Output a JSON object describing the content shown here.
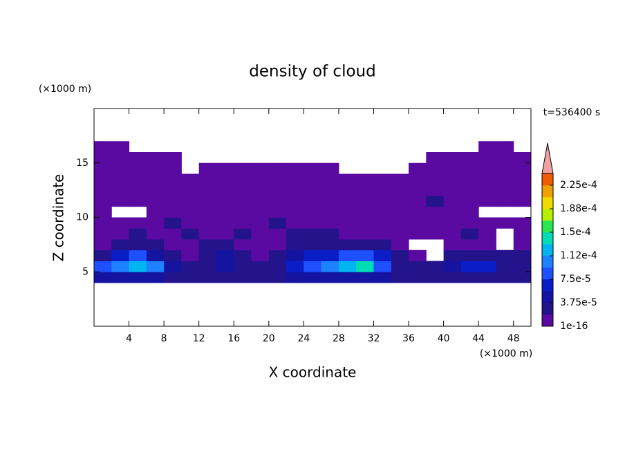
{
  "chart_data": {
    "type": "contour",
    "title": "density of cloud",
    "x_label": "X coordinate",
    "y_label": "Z coordinate",
    "x_unit": "(×1000 m)",
    "y_unit": "(×1000 m)",
    "time_label": "t=536400 s",
    "xlim": [
      0,
      50
    ],
    "ylim": [
      0,
      20
    ],
    "xticks": [
      4,
      8,
      12,
      16,
      20,
      24,
      28,
      32,
      36,
      40,
      44,
      48
    ],
    "yticks": [
      5,
      10,
      15
    ],
    "x_centers": [
      1,
      3,
      5,
      7,
      9,
      11,
      13,
      15,
      17,
      19,
      21,
      23,
      25,
      27,
      29,
      31,
      33,
      35,
      37,
      39,
      41,
      43,
      45,
      47,
      49
    ],
    "z_centers": [
      4.5,
      5.5,
      6.5,
      7.5,
      8.5,
      9.5,
      10.5,
      11.5,
      12.5,
      13.5,
      14.5,
      15.5,
      16.5
    ],
    "z_values": [
      [
        4e-05,
        4e-05,
        4e-05,
        4e-05,
        2e-05,
        2e-05,
        2e-05,
        2e-05,
        2e-05,
        2e-05,
        2e-05,
        4e-05,
        4e-05,
        4e-05,
        4e-05,
        4e-05,
        4e-05,
        2e-05,
        2e-05,
        2e-05,
        2e-05,
        3e-05,
        3e-05,
        2e-05,
        2e-05
      ],
      [
        8e-05,
        0.00011,
        0.00013,
        0.0001,
        4e-05,
        2e-05,
        3e-05,
        4e-05,
        3e-05,
        2e-05,
        3e-05,
        6e-05,
        9e-05,
        0.00011,
        0.00012,
        0.00014,
        9e-05,
        3e-05,
        2e-05,
        3e-05,
        4e-05,
        7e-05,
        6e-05,
        3e-05,
        3e-05
      ],
      [
        3e-05,
        6e-05,
        8e-05,
        5e-05,
        2e-05,
        1e-05,
        3e-05,
        4e-05,
        2e-05,
        1e-05,
        2e-05,
        4e-05,
        6e-05,
        7e-05,
        8e-05,
        9e-05,
        6e-05,
        2e-05,
        1e-05,
        0,
        2e-05,
        3e-05,
        2e-05,
        2e-05,
        2e-05
      ],
      [
        1e-05,
        2e-05,
        3e-05,
        2e-05,
        1e-05,
        1e-05,
        2e-05,
        2e-05,
        1e-05,
        1e-05,
        1e-05,
        2e-05,
        3e-05,
        3e-05,
        3e-05,
        2e-05,
        2e-05,
        1e-05,
        0,
        0,
        1e-05,
        1e-05,
        1e-05,
        0,
        1e-05
      ],
      [
        1e-05,
        1e-05,
        2e-05,
        1e-05,
        1e-05,
        2e-05,
        1e-05,
        1e-05,
        2e-05,
        1e-05,
        1e-05,
        2e-05,
        2e-05,
        2e-05,
        1e-05,
        1e-05,
        1e-05,
        1e-05,
        1e-05,
        1e-05,
        1e-05,
        2e-05,
        1e-05,
        0,
        1e-05
      ],
      [
        1e-05,
        1e-05,
        1e-05,
        1e-05,
        2e-05,
        1e-05,
        1e-05,
        1e-05,
        1e-05,
        1e-05,
        2e-05,
        1e-05,
        1e-05,
        1e-05,
        1e-05,
        1e-05,
        1e-05,
        1e-05,
        1e-05,
        1e-05,
        1e-05,
        1e-05,
        1e-05,
        1e-05,
        1e-05
      ],
      [
        1e-05,
        0,
        0,
        1e-05,
        1e-05,
        1e-05,
        1e-05,
        1e-05,
        1e-05,
        1e-05,
        1e-05,
        1e-05,
        1e-05,
        1e-05,
        1e-05,
        1e-05,
        1e-05,
        1e-05,
        1e-05,
        1e-05,
        1e-05,
        1e-05,
        0,
        0,
        0
      ],
      [
        5e-06,
        5e-06,
        5e-06,
        5e-06,
        5e-06,
        5e-06,
        5e-06,
        5e-06,
        5e-06,
        5e-06,
        5e-06,
        5e-06,
        5e-06,
        5e-06,
        5e-06,
        5e-06,
        5e-06,
        5e-06,
        5e-06,
        2e-05,
        5e-06,
        5e-06,
        5e-06,
        5e-06,
        5e-06
      ],
      [
        5e-06,
        5e-06,
        5e-06,
        5e-06,
        5e-06,
        5e-06,
        5e-06,
        5e-06,
        5e-06,
        5e-06,
        5e-06,
        5e-06,
        5e-06,
        5e-06,
        5e-06,
        5e-06,
        5e-06,
        5e-06,
        5e-06,
        5e-06,
        5e-06,
        5e-06,
        5e-06,
        5e-06,
        5e-06
      ],
      [
        5e-06,
        5e-06,
        5e-06,
        5e-06,
        5e-06,
        5e-06,
        5e-06,
        5e-06,
        5e-06,
        5e-06,
        5e-06,
        5e-06,
        5e-06,
        5e-06,
        5e-06,
        5e-06,
        5e-06,
        5e-06,
        5e-06,
        5e-06,
        5e-06,
        5e-06,
        5e-06,
        5e-06,
        5e-06
      ],
      [
        5e-06,
        5e-06,
        5e-06,
        5e-06,
        5e-06,
        0,
        5e-06,
        5e-06,
        5e-06,
        5e-06,
        5e-06,
        5e-06,
        5e-06,
        5e-06,
        0,
        0,
        0,
        0,
        5e-06,
        5e-06,
        5e-06,
        5e-06,
        5e-06,
        5e-06,
        5e-06
      ],
      [
        5e-06,
        5e-06,
        5e-06,
        5e-06,
        5e-06,
        0,
        0,
        0,
        0,
        0,
        0,
        0,
        0,
        0,
        0,
        0,
        0,
        0,
        0,
        5e-06,
        5e-06,
        5e-06,
        5e-06,
        5e-06,
        5e-06
      ],
      [
        5e-06,
        5e-06,
        0,
        0,
        0,
        0,
        0,
        0,
        0,
        0,
        0,
        0,
        0,
        0,
        0,
        0,
        0,
        0,
        0,
        0,
        0,
        0,
        5e-06,
        5e-06,
        0
      ]
    ],
    "colorbar": {
      "levels": [
        1e-16,
        1.875e-05,
        3.75e-05,
        5.625e-05,
        7.5e-05,
        9.375e-05,
        0.0001125,
        0.00013125,
        0.00015,
        0.00016875,
        0.0001875,
        0.00020625,
        0.000225,
        0.00024375
      ],
      "colors": [
        "#5a0aa0",
        "#23148c",
        "#1414a0",
        "#0a1ec8",
        "#1e50ff",
        "#1e82ff",
        "#00b4f0",
        "#00dcb4",
        "#28e650",
        "#b4f000",
        "#f0dc00",
        "#f0a000",
        "#f05a00"
      ],
      "over_color": "#f0a0a0",
      "ticks": [
        1e-16,
        {
          "value": 3.75e-05,
          "label": "3.75e-5"
        },
        {
          "value": 7.5e-05,
          "label": "7.5e-5"
        },
        {
          "value": 0.0001125,
          "label": "1.12e-4"
        },
        {
          "value": 0.00015,
          "label": "1.5e-4"
        },
        {
          "value": 0.0001875,
          "label": "1.88e-4"
        },
        {
          "value": 0.000225,
          "label": "2.25e-4"
        }
      ]
    }
  }
}
